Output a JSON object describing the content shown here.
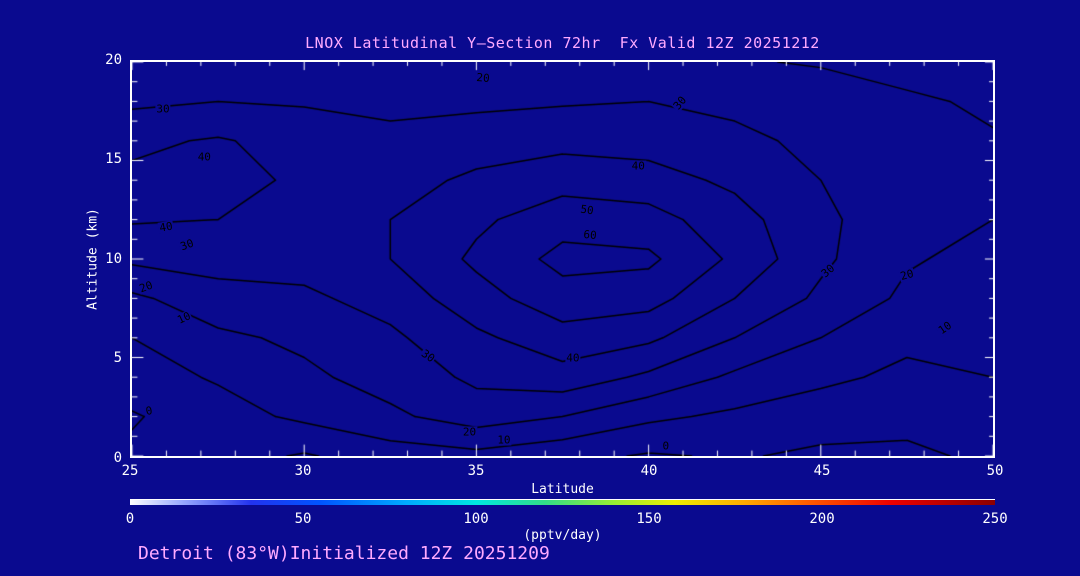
{
  "title": "LNOX Latitudinal Y–Section 72hr  Fx Valid 12Z 20251212",
  "footer": "Detroit (83°W)Initialized 12Z 20251209",
  "colors": {
    "background": "#0a0a8f",
    "contour": "#000000",
    "axis_text": "#ffffff",
    "annotation": "#ffaaff",
    "frame": "#ffffff"
  },
  "axes": {
    "x": {
      "label": "Latitude",
      "min": 25,
      "max": 50,
      "major_ticks": [
        25,
        30,
        35,
        40,
        45,
        50
      ],
      "tick_labels": [
        "25",
        "30",
        "35",
        "40",
        "45",
        "50"
      ],
      "minor_step": 1
    },
    "y": {
      "label": "Altitude (km)",
      "min": 0,
      "max": 20,
      "major_ticks": [
        0,
        5,
        10,
        15,
        20
      ],
      "tick_labels": [
        "0",
        "5",
        "10",
        "15",
        "20"
      ],
      "minor_step": 1
    }
  },
  "colorbar": {
    "label": "(pptv/day)",
    "min": 0,
    "max": 250,
    "tick_labels": [
      "0",
      "50",
      "100",
      "150",
      "200",
      "250"
    ],
    "stops": [
      {
        "p": 0,
        "c": "#ffffff"
      },
      {
        "p": 6,
        "c": "#99aaff"
      },
      {
        "p": 14,
        "c": "#2233ee"
      },
      {
        "p": 22,
        "c": "#0055ff"
      },
      {
        "p": 32,
        "c": "#00aaff"
      },
      {
        "p": 40,
        "c": "#00e8e0"
      },
      {
        "p": 48,
        "c": "#33dd88"
      },
      {
        "p": 56,
        "c": "#99ee33"
      },
      {
        "p": 63,
        "c": "#eeee00"
      },
      {
        "p": 71,
        "c": "#ffaa00"
      },
      {
        "p": 79,
        "c": "#ff5500"
      },
      {
        "p": 88,
        "c": "#ee0000"
      },
      {
        "p": 100,
        "c": "#8b0000"
      }
    ]
  },
  "chart_data": {
    "type": "heatmap",
    "representation": "contour-lines",
    "title": "LNOX Latitudinal Y–Section 72hr  Fx Valid 12Z 20251212",
    "xlabel": "Latitude",
    "ylabel": "Altitude (km)",
    "units": "pptv/day",
    "xlim": [
      25,
      50
    ],
    "ylim": [
      0,
      20
    ],
    "grid": false,
    "x": [
      25,
      27.5,
      30,
      32.5,
      35,
      37.5,
      40,
      42.5,
      45,
      47.5,
      50
    ],
    "y": [
      0,
      2,
      4,
      6,
      8,
      10,
      12,
      14,
      16,
      18,
      20
    ],
    "levels": [
      0,
      10,
      20,
      30,
      40,
      50,
      60
    ],
    "values": [
      [
        2,
        4,
        -1,
        5,
        7,
        3,
        -1,
        1,
        -2,
        -2,
        2
      ],
      [
        -1,
        6,
        12,
        18,
        25,
        20,
        12,
        8,
        5,
        3,
        8
      ],
      [
        6,
        11,
        18,
        24,
        32,
        36,
        28,
        18,
        12,
        8,
        10
      ],
      [
        10,
        18,
        22,
        28,
        38,
        46,
        42,
        30,
        20,
        12,
        11
      ],
      [
        18,
        26,
        28,
        34,
        46,
        56,
        54,
        40,
        28,
        18,
        14
      ],
      [
        32,
        34,
        34,
        40,
        52,
        63,
        62,
        48,
        32,
        21,
        17
      ],
      [
        41,
        40,
        36,
        40,
        48,
        56,
        54,
        44,
        32,
        24,
        20
      ],
      [
        42,
        44,
        38,
        36,
        42,
        46,
        44,
        38,
        30,
        25,
        22
      ],
      [
        38,
        41,
        36,
        33,
        35,
        37,
        36,
        32,
        28,
        24,
        21
      ],
      [
        28,
        30,
        29,
        27,
        28,
        29,
        30,
        28,
        26,
        22,
        18
      ],
      [
        22,
        23,
        22,
        21,
        20,
        21,
        22,
        21,
        19,
        15,
        12
      ]
    ]
  },
  "contour_labels": [
    {
      "text": "30",
      "lat": 25.9,
      "alt": 17.6,
      "rot": 0
    },
    {
      "text": "20",
      "lat": 35.2,
      "alt": 19.2,
      "rot": 5
    },
    {
      "text": "40",
      "lat": 27.1,
      "alt": 15.2,
      "rot": 0
    },
    {
      "text": "30",
      "lat": 40.9,
      "alt": 17.9,
      "rot": -50
    },
    {
      "text": "40",
      "lat": 26.0,
      "alt": 11.6,
      "rot": -10
    },
    {
      "text": "30",
      "lat": 26.6,
      "alt": 10.7,
      "rot": -20
    },
    {
      "text": "20",
      "lat": 25.4,
      "alt": 8.6,
      "rot": -20
    },
    {
      "text": "10",
      "lat": 26.5,
      "alt": 7.0,
      "rot": -25
    },
    {
      "text": "0",
      "lat": 25.5,
      "alt": 2.3,
      "rot": -10
    },
    {
      "text": "40",
      "lat": 39.7,
      "alt": 14.7,
      "rot": 0
    },
    {
      "text": "50",
      "lat": 38.2,
      "alt": 12.5,
      "rot": 8
    },
    {
      "text": "60",
      "lat": 38.3,
      "alt": 11.2,
      "rot": 5
    },
    {
      "text": "40",
      "lat": 37.8,
      "alt": 5.0,
      "rot": 0
    },
    {
      "text": "30",
      "lat": 33.6,
      "alt": 5.1,
      "rot": 35
    },
    {
      "text": "20",
      "lat": 34.8,
      "alt": 1.2,
      "rot": 0
    },
    {
      "text": "10",
      "lat": 35.8,
      "alt": 0.8,
      "rot": 0
    },
    {
      "text": "0",
      "lat": 40.5,
      "alt": 0.5,
      "rot": 0
    },
    {
      "text": "30",
      "lat": 45.2,
      "alt": 9.4,
      "rot": -40
    },
    {
      "text": "20",
      "lat": 47.5,
      "alt": 9.2,
      "rot": -15
    },
    {
      "text": "10",
      "lat": 48.6,
      "alt": 6.5,
      "rot": -35
    }
  ]
}
